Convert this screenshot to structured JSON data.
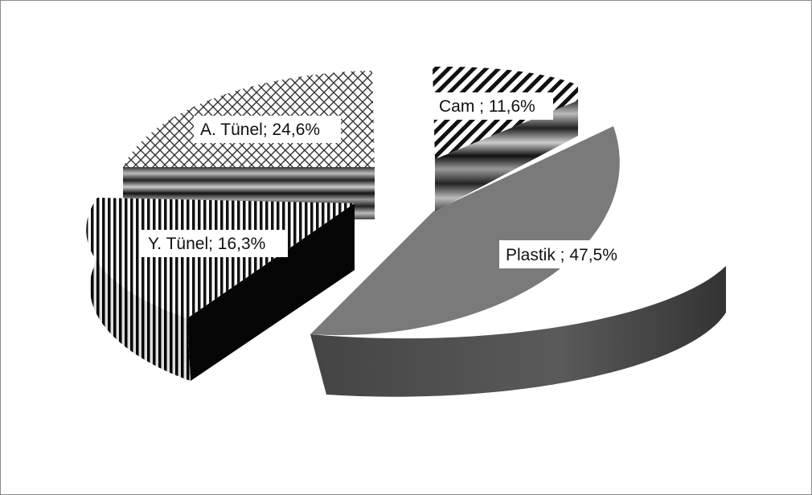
{
  "chart_data": {
    "type": "pie",
    "style": "3d-exploded",
    "title": "",
    "slices": [
      {
        "label": "Cam",
        "value": 11.6,
        "display": "Cam ; 11,6%",
        "pattern": "diagonal-stripes",
        "side_color": "#aaaaaa"
      },
      {
        "label": "Plastik",
        "value": 47.5,
        "display": "Plastik ; 47,5%",
        "pattern": "solid-gray",
        "side_color": "#555555"
      },
      {
        "label": "Y. Tünel",
        "value": 16.3,
        "display": "Y. Tünel; 16,3%",
        "pattern": "vertical-stripes",
        "side_color": "#000000"
      },
      {
        "label": "A. Tünel",
        "value": 24.6,
        "display": "A. Tünel; 24,6%",
        "pattern": "crosshatch",
        "side_color": "#888888"
      }
    ],
    "colors": {
      "plastik_top": "#7a7a7a",
      "plastik_side": "#4a4a4a"
    }
  }
}
